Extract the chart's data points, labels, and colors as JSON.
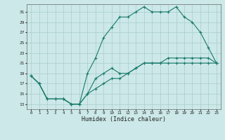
{
  "xlabel": "Humidex (Indice chaleur)",
  "ylabel": "",
  "bg_color": "#cce8e8",
  "grid_color": "#aacccc",
  "line_color": "#1a7a6a",
  "xlim": [
    -0.5,
    23.5
  ],
  "ylim": [
    12,
    32.5
  ],
  "xticks": [
    0,
    1,
    2,
    3,
    4,
    5,
    6,
    7,
    8,
    9,
    10,
    11,
    12,
    13,
    14,
    15,
    16,
    17,
    18,
    19,
    20,
    21,
    22,
    23
  ],
  "yticks": [
    13,
    15,
    17,
    19,
    21,
    23,
    25,
    27,
    29,
    31
  ],
  "line1_x": [
    0,
    1,
    2,
    3,
    4,
    5,
    6,
    7,
    8,
    9,
    10,
    11,
    12,
    13,
    14,
    15,
    16,
    17,
    18,
    19,
    20,
    21,
    22,
    23
  ],
  "line1_y": [
    18.5,
    17,
    14,
    14,
    14,
    13,
    13,
    15,
    18,
    19,
    20,
    19,
    19,
    20,
    21,
    21,
    21,
    21,
    21,
    21,
    21,
    21,
    21,
    21
  ],
  "line2_x": [
    0,
    1,
    2,
    3,
    4,
    5,
    6,
    7,
    8,
    9,
    10,
    11,
    12,
    13,
    14,
    15,
    16,
    17,
    18,
    19,
    20,
    21,
    22,
    23
  ],
  "line2_y": [
    18.5,
    17,
    14,
    14,
    14,
    13,
    13,
    19,
    22,
    26,
    28,
    30,
    30,
    31,
    32,
    31,
    31,
    31,
    32,
    30,
    29,
    27,
    24,
    21
  ],
  "line3_x": [
    0,
    1,
    2,
    3,
    4,
    5,
    6,
    7,
    8,
    9,
    10,
    11,
    12,
    13,
    14,
    15,
    16,
    17,
    18,
    19,
    20,
    21,
    22,
    23
  ],
  "line3_y": [
    18.5,
    17,
    14,
    14,
    14,
    13,
    13,
    15,
    16,
    17,
    18,
    18,
    19,
    20,
    21,
    21,
    21,
    22,
    22,
    22,
    22,
    22,
    22,
    21
  ]
}
